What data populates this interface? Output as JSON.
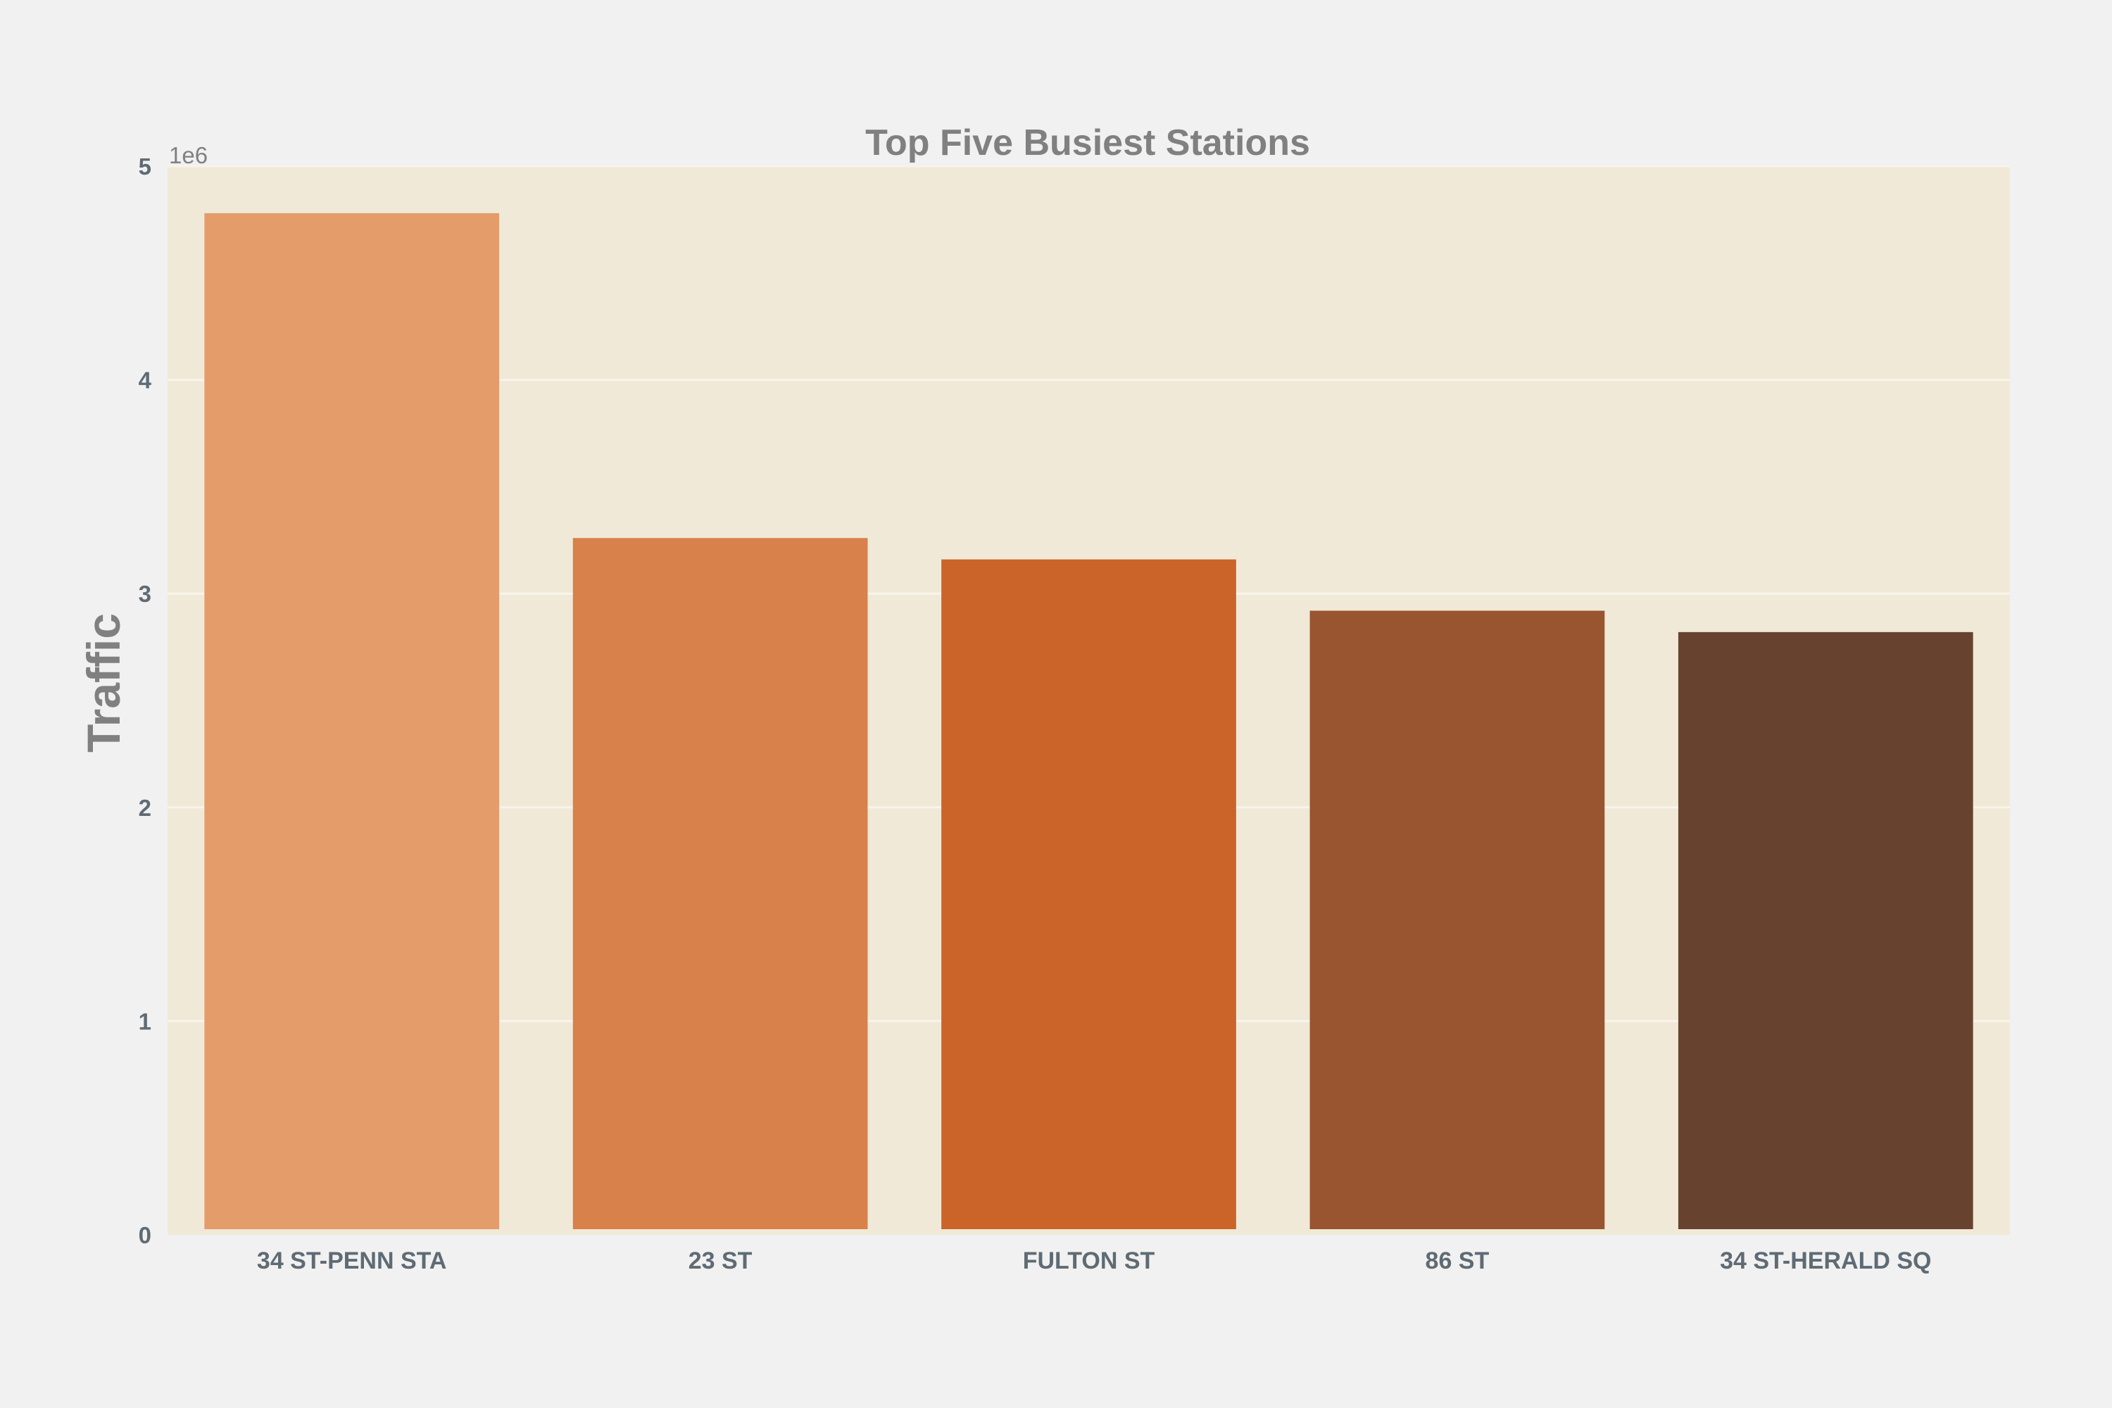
{
  "chart_data": {
    "type": "bar",
    "title": "Top Five Busiest Stations",
    "xlabel": "",
    "ylabel": "Traffic",
    "y_offset_label": "1e6",
    "categories": [
      "34 ST-PENN STA",
      "23 ST",
      "FULTON ST",
      "86 ST",
      "34 ST-HERALD SQ"
    ],
    "values": [
      4780000,
      3260000,
      3160000,
      2920000,
      2820000
    ],
    "ylim": [
      0,
      5000000
    ],
    "yticks": [
      0,
      1,
      2,
      3,
      4,
      5
    ],
    "ytick_scale": 1000000,
    "grid": true,
    "colors": {
      "plot_background": "#f0e9d8",
      "page_background": "#f1f1f1",
      "gridline": "#f8f4ea",
      "bars": [
        "#e49c6a",
        "#d8814a",
        "#cb6428",
        "#98552f",
        "#67432f"
      ]
    }
  }
}
